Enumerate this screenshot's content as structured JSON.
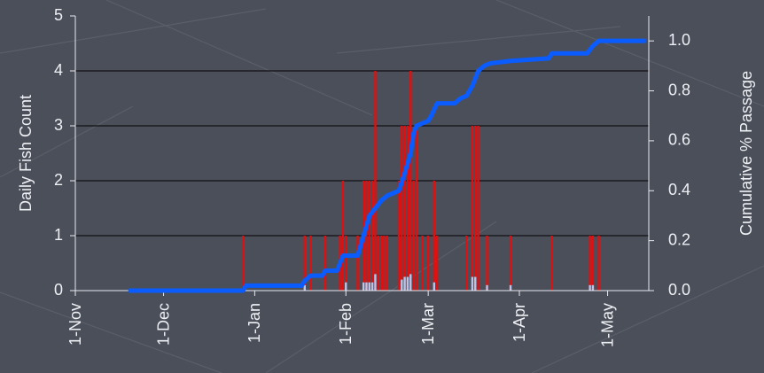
{
  "chart_data": {
    "type": "bar",
    "ylabel": "Daily Fish Count",
    "y2label": "Cumulative % Passage",
    "xlim": [
      "1-Nov",
      "15-May"
    ],
    "xticks": [
      "1-Nov",
      "1-Dec",
      "1-Jan",
      "1-Feb",
      "1-Mar",
      "1-Apr",
      "1-May"
    ],
    "ylim": [
      0,
      5
    ],
    "yticks": [
      0,
      1,
      2,
      3,
      4,
      5
    ],
    "y2lim": [
      0,
      1.1
    ],
    "y2ticks": [
      {
        "value": 0,
        "label": "0.0"
      },
      {
        "value": 0.2,
        "label": "0.2"
      },
      {
        "value": 0.4,
        "label": "0.4"
      },
      {
        "value": 0.6,
        "label": "0.6"
      },
      {
        "value": 0.8,
        "label": "0.8"
      },
      {
        "value": 1,
        "label": "1.0"
      }
    ],
    "grid": true,
    "series": [
      {
        "type": "bar",
        "color": "#e01010",
        "x": [
          "28-Dec",
          "18-Jan",
          "20-Jan",
          "25-Jan",
          "30-Jan",
          "31-Jan",
          "1-Feb",
          "5-Feb",
          "7-Feb",
          "8-Feb",
          "9-Feb",
          "10-Feb",
          "11-Feb",
          "12-Feb",
          "13-Feb",
          "14-Feb",
          "15-Feb",
          "19-Feb",
          "20-Feb",
          "21-Feb",
          "22-Feb",
          "23-Feb",
          "24-Feb",
          "25-Feb",
          "27-Feb",
          "1-Mar",
          "3-Mar",
          "4-Mar",
          "14-Mar",
          "16-Mar",
          "17-Mar",
          "18-Mar",
          "21-Mar",
          "29-Mar",
          "12-Apr",
          "25-Apr",
          "26-Apr",
          "28-Apr"
        ],
        "values": [
          1,
          1,
          1,
          1,
          1,
          2,
          1,
          1,
          2,
          2,
          2,
          2,
          4,
          1,
          1,
          1,
          1,
          2,
          3,
          3,
          3,
          4,
          2,
          3,
          1,
          1,
          2,
          1,
          1,
          3,
          3,
          3,
          1,
          1,
          1,
          1,
          1,
          1
        ]
      },
      {
        "type": "bar",
        "color": "#b8c4e8",
        "x": [
          "18-Jan",
          "1-Feb",
          "7-Feb",
          "8-Feb",
          "9-Feb",
          "10-Feb",
          "11-Feb",
          "20-Feb",
          "21-Feb",
          "22-Feb",
          "23-Feb",
          "3-Mar",
          "16-Mar",
          "17-Mar",
          "21-Mar",
          "29-Mar",
          "25-Apr",
          "26-Apr"
        ],
        "values": [
          0.1,
          0.15,
          0.15,
          0.15,
          0.15,
          0.15,
          0.3,
          0.2,
          0.25,
          0.25,
          0.3,
          0.15,
          0.25,
          0.25,
          0.1,
          0.1,
          0.1,
          0.1
        ]
      },
      {
        "type": "line",
        "color": "#0a5cff",
        "axis": "y2",
        "x": [
          "19-Nov",
          "28-Dec",
          "29-Dec",
          "17-Jan",
          "18-Jan",
          "20-Jan",
          "24-Jan",
          "25-Jan",
          "29-Jan",
          "31-Jan",
          "5-Feb",
          "6-Feb",
          "7-Feb",
          "9-Feb",
          "11-Feb",
          "13-Feb",
          "15-Feb",
          "19-Feb",
          "21-Feb",
          "23-Feb",
          "24-Feb",
          "25-Feb",
          "1-Mar",
          "2-Mar",
          "4-Mar",
          "10-Mar",
          "12-Mar",
          "14-Mar",
          "16-Mar",
          "18-Mar",
          "20-Mar",
          "22-Mar",
          "29-Mar",
          "11-Apr",
          "12-Apr",
          "24-Apr",
          "26-Apr",
          "28-Apr",
          "14-May"
        ],
        "values": [
          0,
          0,
          0.02,
          0.02,
          0.04,
          0.06,
          0.06,
          0.08,
          0.08,
          0.14,
          0.14,
          0.18,
          0.22,
          0.3,
          0.33,
          0.36,
          0.38,
          0.4,
          0.47,
          0.55,
          0.63,
          0.66,
          0.68,
          0.7,
          0.75,
          0.75,
          0.77,
          0.78,
          0.82,
          0.88,
          0.9,
          0.91,
          0.92,
          0.93,
          0.95,
          0.95,
          0.98,
          1,
          1
        ]
      }
    ]
  }
}
